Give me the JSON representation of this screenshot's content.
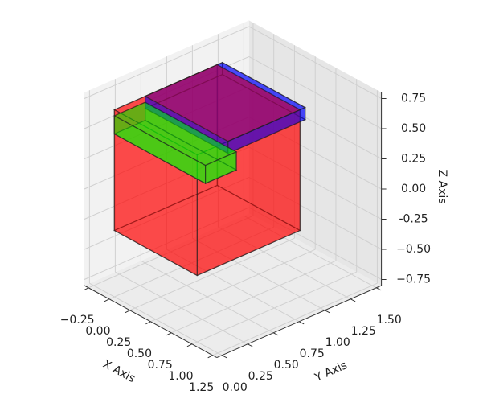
{
  "chart_data": {
    "type": "bar3d",
    "xlabel": "X Axis",
    "ylabel": "Y Axis",
    "zlabel": "Z Axis",
    "xlim": [
      -0.3,
      1.3
    ],
    "ylim": [
      -0.05,
      1.55
    ],
    "zlim": [
      -0.8,
      0.8
    ],
    "xticks": [
      {
        "value": -0.25,
        "label": "−0.25"
      },
      {
        "value": 0,
        "label": "0.00"
      },
      0.25,
      {
        "value": 0.5,
        "label": "0.50"
      },
      0.75,
      {
        "value": 1,
        "label": "1.00"
      },
      1.25
    ],
    "yticks": [
      {
        "value": 0,
        "label": "0.00"
      },
      0.25,
      {
        "value": 0.5,
        "label": "0.50"
      },
      0.75,
      {
        "value": 1,
        "label": "1.00"
      },
      1.25,
      {
        "value": 1.5,
        "label": "1.50"
      }
    ],
    "zticks": [
      {
        "value": -0.75,
        "label": "−0.75"
      },
      {
        "value": -0.5,
        "label": "−0.50"
      },
      -0.25,
      {
        "value": 0,
        "label": "0.00"
      },
      0.25,
      {
        "value": 0.5,
        "label": "0.50"
      },
      0.75
    ],
    "grid": true,
    "alpha": 0.45,
    "edgecolor": "#222222",
    "boxes": [
      {
        "color": "#ff0000",
        "x": 0,
        "y": 0,
        "z": -0.25,
        "dx": 1,
        "dy": 1,
        "dz": 1
      },
      {
        "color": "#0000ff",
        "x": 0,
        "y": 0.3,
        "z": 0.65,
        "dx": 1,
        "dy": 0.75,
        "dz": 0.1
      },
      {
        "color": "#00ff00",
        "x": 0,
        "y": 0,
        "z": 0.55,
        "dx": 1.1,
        "dy": 0.3,
        "dz": 0.15
      }
    ]
  }
}
